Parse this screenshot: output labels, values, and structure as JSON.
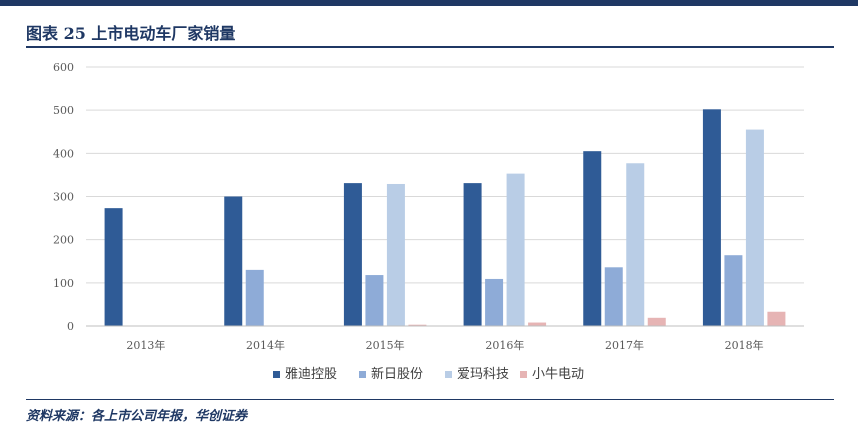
{
  "header": {
    "title": "图表 25   上市电动车厂家销量"
  },
  "footer": {
    "source": "资料来源：各上市公司年报，华创证券"
  },
  "colors": {
    "brand": "#1f3864",
    "series": [
      "#2f5b96",
      "#8eabd7",
      "#b9cde6",
      "#e6b4b4"
    ]
  },
  "chart_data": {
    "type": "bar",
    "categories": [
      "2013年",
      "2014年",
      "2015年",
      "2016年",
      "2017年",
      "2018年"
    ],
    "series": [
      {
        "name": "雅迪控股",
        "values": [
          273,
          300,
          331,
          331,
          405,
          502
        ]
      },
      {
        "name": "新日股份",
        "values": [
          null,
          130,
          118,
          109,
          136,
          164
        ]
      },
      {
        "name": "爱玛科技",
        "values": [
          null,
          null,
          329,
          353,
          377,
          455
        ]
      },
      {
        "name": "小牛电动",
        "values": [
          null,
          null,
          3,
          8,
          19,
          33
        ]
      }
    ],
    "yticks": [
      "0",
      "100",
      "200",
      "300",
      "400",
      "500",
      "600"
    ],
    "ylim": [
      0,
      600
    ],
    "grid": true,
    "legend": "bottom",
    "title": "",
    "xlabel": "",
    "ylabel": ""
  }
}
